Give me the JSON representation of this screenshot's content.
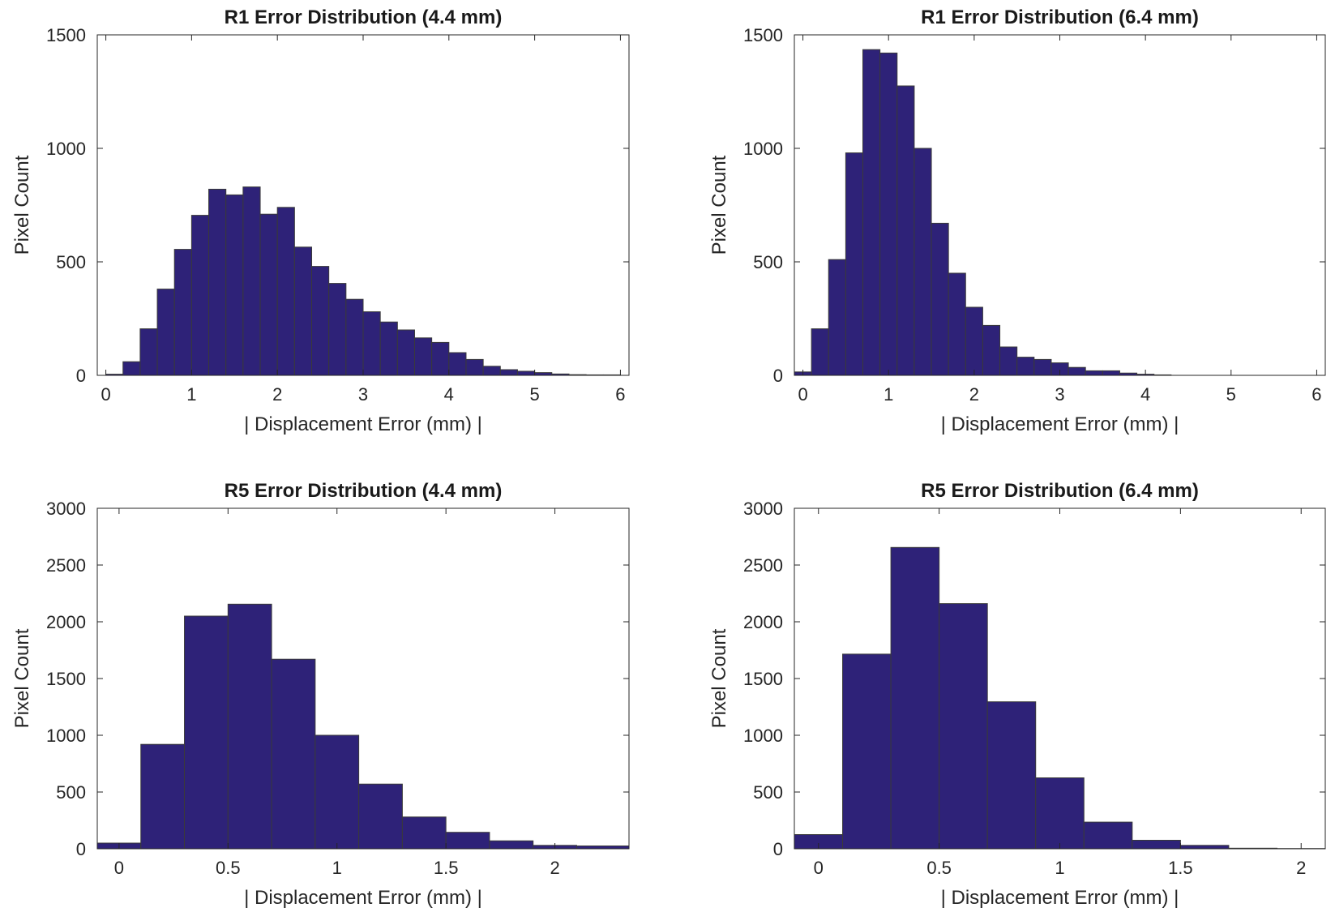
{
  "figure": {
    "bar_color": "#2e2278",
    "edge_color": "#3a3a3a",
    "axis_color": "#262626"
  },
  "chart_data": [
    {
      "type": "bar",
      "title": "R1 Error Distribution (4.4 mm)",
      "xlabel": "| Displacement Error (mm) |",
      "ylabel": "Pixel Count",
      "xlim": [
        -0.1,
        6.1
      ],
      "ylim": [
        0,
        1500
      ],
      "xticks": [
        0,
        1,
        2,
        3,
        4,
        5,
        6
      ],
      "yticks": [
        0,
        500,
        1000,
        1500
      ],
      "bin_edges": [
        0,
        0.2,
        0.4,
        0.6,
        0.8,
        1.0,
        1.2,
        1.4,
        1.6,
        1.8,
        2.0,
        2.2,
        2.4,
        2.6,
        2.8,
        3.0,
        3.2,
        3.4,
        3.6,
        3.8,
        4.0,
        4.2,
        4.4,
        4.6,
        4.8,
        5.0,
        5.2,
        5.4,
        5.6,
        5.8,
        6.0
      ],
      "values": [
        5,
        60,
        205,
        380,
        555,
        705,
        820,
        795,
        830,
        710,
        740,
        565,
        480,
        405,
        335,
        280,
        235,
        200,
        165,
        145,
        100,
        70,
        40,
        25,
        18,
        12,
        6,
        3,
        2,
        2
      ]
    },
    {
      "type": "bar",
      "title": "R1 Error Distribution (6.4 mm)",
      "xlabel": "| Displacement Error (mm) |",
      "ylabel": "Pixel Count",
      "xlim": [
        -0.1,
        6.1
      ],
      "ylim": [
        0,
        1500
      ],
      "xticks": [
        0,
        1,
        2,
        3,
        4,
        5,
        6
      ],
      "yticks": [
        0,
        500,
        1000,
        1500
      ],
      "bin_edges": [
        -0.1,
        0.1,
        0.3,
        0.5,
        0.7,
        0.9,
        1.1,
        1.3,
        1.5,
        1.7,
        1.9,
        2.1,
        2.3,
        2.5,
        2.7,
        2.9,
        3.1,
        3.3,
        3.5,
        3.7,
        3.9,
        4.1,
        4.3
      ],
      "values": [
        15,
        205,
        510,
        980,
        1435,
        1420,
        1275,
        1000,
        670,
        450,
        300,
        220,
        125,
        80,
        70,
        55,
        35,
        20,
        20,
        10,
        5,
        2
      ]
    },
    {
      "type": "bar",
      "title": "R5 Error Distribution (4.4 mm)",
      "xlabel": "| Displacement Error (mm) |",
      "ylabel": "Pixel Count",
      "xlim": [
        -0.1,
        2.34
      ],
      "ylim": [
        0,
        3000
      ],
      "xticks": [
        0,
        0.5,
        1,
        1.5,
        2
      ],
      "yticks": [
        0,
        500,
        1000,
        1500,
        2000,
        2500,
        3000
      ],
      "bin_edges": [
        -0.1,
        0.1,
        0.3,
        0.5,
        0.7,
        0.9,
        1.1,
        1.3,
        1.5,
        1.7,
        1.9,
        2.1,
        2.34
      ],
      "values": [
        50,
        920,
        2050,
        2155,
        1670,
        1000,
        570,
        280,
        145,
        70,
        30,
        25
      ]
    },
    {
      "type": "bar",
      "title": "R5 Error Distribution (6.4 mm)",
      "xlabel": "| Displacement Error (mm) |",
      "ylabel": "Pixel Count",
      "xlim": [
        -0.1,
        2.1
      ],
      "ylim": [
        0,
        3000
      ],
      "xticks": [
        0,
        0.5,
        1,
        1.5,
        2
      ],
      "yticks": [
        0,
        500,
        1000,
        1500,
        2000,
        2500,
        3000
      ],
      "bin_edges": [
        -0.1,
        0.1,
        0.3,
        0.5,
        0.7,
        0.9,
        1.1,
        1.3,
        1.5,
        1.7,
        1.9,
        2.1
      ],
      "values": [
        125,
        1715,
        2655,
        2160,
        1295,
        625,
        235,
        75,
        30,
        5,
        2
      ]
    }
  ]
}
